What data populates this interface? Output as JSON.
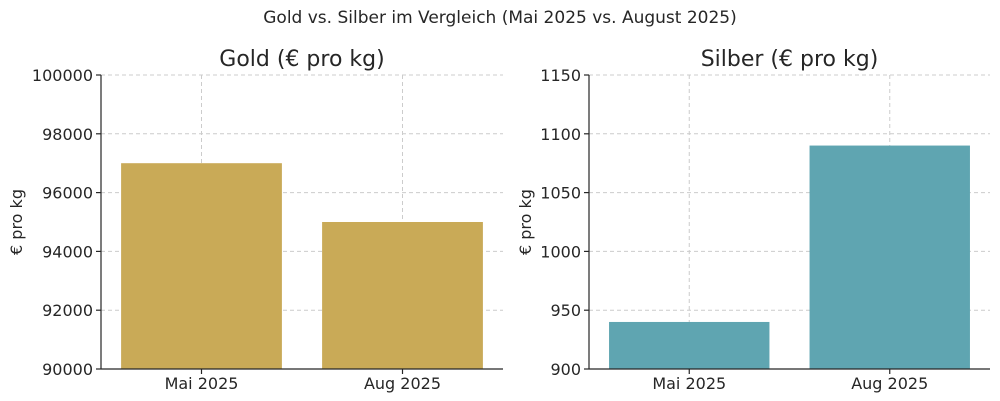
{
  "suptitle": "Gold vs. Silber im Vergleich (Mai 2025 vs. August 2025)",
  "chart_data": [
    {
      "type": "bar",
      "title": "Gold (€ pro kg)",
      "xlabel": "",
      "ylabel": "€ pro kg",
      "categories": [
        "Mai 2025",
        "Aug 2025"
      ],
      "values": [
        97000,
        95000
      ],
      "ylim": [
        90000,
        100000
      ],
      "yticks": [
        90000,
        92000,
        94000,
        96000,
        98000,
        100000
      ],
      "color": "#c9aa57",
      "grid": true
    },
    {
      "type": "bar",
      "title": "Silber (€ pro kg)",
      "xlabel": "",
      "ylabel": "€ pro kg",
      "categories": [
        "Mai 2025",
        "Aug 2025"
      ],
      "values": [
        940,
        1090
      ],
      "ylim": [
        900,
        1150
      ],
      "yticks": [
        900,
        950,
        1000,
        1050,
        1100,
        1150
      ],
      "color": "#5fa5b1",
      "grid": true
    }
  ]
}
